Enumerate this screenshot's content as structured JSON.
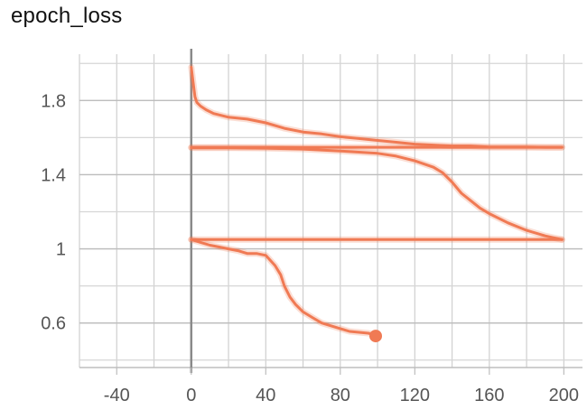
{
  "chart_data": {
    "type": "line",
    "title": "epoch_loss",
    "xlabel": "",
    "ylabel": "",
    "xlim": [
      -60,
      210
    ],
    "ylim": [
      0.36,
      2.05
    ],
    "x_ticks": [
      -40,
      0,
      40,
      80,
      120,
      160,
      200
    ],
    "y_ticks": [
      0.6,
      1,
      1.4,
      1.8
    ],
    "x_tick_labels": [
      "-40",
      "0",
      "40",
      "80",
      "120",
      "160",
      "200"
    ],
    "y_tick_labels": [
      "0.6",
      "1",
      "1.4",
      "1.8"
    ],
    "grid": true,
    "color": "#f07a54",
    "series": [
      {
        "x": [
          0,
          1,
          2,
          3,
          5,
          8,
          12,
          20,
          30,
          40,
          50,
          60,
          70,
          80,
          90,
          100,
          110,
          120,
          130,
          140,
          150,
          160,
          170,
          180,
          190,
          199
        ],
        "y": [
          1.98,
          1.9,
          1.82,
          1.79,
          1.77,
          1.75,
          1.73,
          1.71,
          1.7,
          1.68,
          1.65,
          1.63,
          1.62,
          1.605,
          1.595,
          1.585,
          1.575,
          1.565,
          1.56,
          1.555,
          1.555,
          1.55,
          1.55,
          1.55,
          1.548,
          1.548
        ]
      },
      {
        "x": [
          0,
          20,
          40,
          60,
          80,
          100,
          110,
          120,
          130,
          135,
          140,
          145,
          150,
          155,
          160,
          170,
          180,
          190,
          199
        ],
        "y": [
          1.545,
          1.545,
          1.543,
          1.538,
          1.528,
          1.515,
          1.5,
          1.475,
          1.44,
          1.41,
          1.36,
          1.3,
          1.26,
          1.22,
          1.19,
          1.14,
          1.1,
          1.07,
          1.05
        ]
      },
      {
        "x": [
          0,
          199
        ],
        "y": [
          1.548,
          1.548
        ]
      },
      {
        "x": [
          0,
          199
        ],
        "y": [
          1.05,
          1.05
        ]
      },
      {
        "x": [
          0,
          5,
          10,
          15,
          20,
          25,
          30,
          35,
          40,
          45,
          48,
          50,
          53,
          56,
          60,
          65,
          70,
          75,
          80,
          85,
          90,
          95,
          99
        ],
        "y": [
          1.05,
          1.035,
          1.02,
          1.01,
          1.0,
          0.99,
          0.975,
          0.975,
          0.965,
          0.91,
          0.86,
          0.8,
          0.74,
          0.7,
          0.66,
          0.63,
          0.6,
          0.585,
          0.57,
          0.555,
          0.55,
          0.545,
          0.535
        ]
      }
    ],
    "end_marker": {
      "x": 99,
      "y": 0.53
    }
  }
}
